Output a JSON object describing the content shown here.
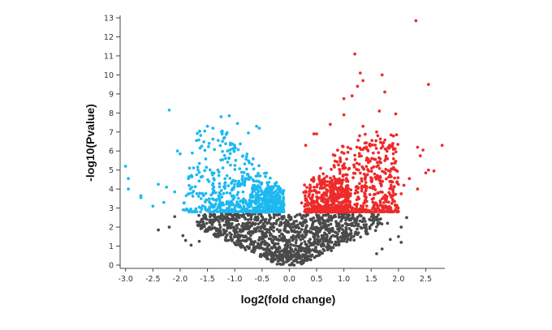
{
  "chart_data": {
    "type": "scatter",
    "title": "",
    "xlabel": "log2(fold change)",
    "ylabel": "-log10(Pvalue)",
    "xlim": [
      -3.1,
      2.85
    ],
    "ylim": [
      0,
      13.2
    ],
    "x_ticks": [
      -3.0,
      -2.5,
      -2.0,
      -1.5,
      -1.0,
      -0.5,
      0.0,
      0.5,
      1.0,
      1.5,
      2.0,
      2.5
    ],
    "x_tick_labels": [
      "-3.0",
      "-2.5",
      "-2.0",
      "-1.5",
      "-1.0",
      "-0.5",
      "0.0",
      "0.5",
      "1.0",
      "1.5",
      "2.0",
      "2.5"
    ],
    "y_ticks": [
      0,
      1,
      2,
      3,
      4,
      5,
      6,
      7,
      8,
      9,
      10,
      11,
      12,
      13
    ],
    "y_tick_labels": [
      "0",
      "1",
      "2",
      "3",
      "4",
      "5",
      "6",
      "7",
      "8",
      "9",
      "10",
      "11",
      "12",
      "13"
    ],
    "grid": false,
    "legend": "none",
    "significance_threshold_y": 2.75,
    "colors": {
      "down": "#1eb8f0",
      "up": "#ee2a2a",
      "not_significant": "#4a4a4a",
      "axis": "#444444"
    },
    "series": [
      {
        "color_key": "down",
        "points": [
          [
            -3.0,
            5.2
          ],
          [
            -2.95,
            4.55
          ],
          [
            -2.95,
            4.0
          ],
          [
            -2.72,
            3.65
          ],
          [
            -2.72,
            3.55
          ],
          [
            -2.4,
            4.25
          ],
          [
            -2.2,
            8.15
          ],
          [
            -2.05,
            6.0
          ],
          [
            -2.0,
            5.85
          ],
          [
            -1.7,
            6.55
          ],
          [
            -1.55,
            7.05
          ],
          [
            -1.5,
            7.3
          ],
          [
            -1.4,
            7.2
          ],
          [
            -1.25,
            7.8
          ],
          [
            -1.1,
            7.85
          ],
          [
            -0.95,
            7.45
          ],
          [
            -0.75,
            6.95
          ],
          [
            -0.6,
            7.3
          ],
          [
            -0.55,
            7.2
          ],
          [
            -2.25,
            4.1
          ],
          [
            -2.1,
            3.85
          ],
          [
            -1.85,
            4.55
          ],
          [
            -2.3,
            3.3
          ],
          [
            -2.5,
            3.1
          ]
        ],
        "clusters": [
          {
            "x_range": [
              -1.95,
              -0.1
            ],
            "y_range": [
              2.8,
              7.1
            ],
            "count": 520,
            "bias_x": 0.7,
            "bias_y": -1.2,
            "seed": 11
          },
          {
            "x_range": [
              -0.7,
              -0.1
            ],
            "y_range": [
              2.78,
              4.2
            ],
            "count": 220,
            "bias_x": 0.6,
            "bias_y": -0.5,
            "seed": 17
          }
        ]
      },
      {
        "color_key": "up",
        "points": [
          [
            2.32,
            12.85
          ],
          [
            1.2,
            11.1
          ],
          [
            1.3,
            10.1
          ],
          [
            1.35,
            9.7
          ],
          [
            1.25,
            9.4
          ],
          [
            1.7,
            10.0
          ],
          [
            2.55,
            9.5
          ],
          [
            1.75,
            9.1
          ],
          [
            1.15,
            8.9
          ],
          [
            1.0,
            8.75
          ],
          [
            1.65,
            8.1
          ],
          [
            1.95,
            7.95
          ],
          [
            2.8,
            6.3
          ],
          [
            2.35,
            6.2
          ],
          [
            2.45,
            6.05
          ],
          [
            2.4,
            5.75
          ],
          [
            2.55,
            5.0
          ],
          [
            2.5,
            4.85
          ],
          [
            2.65,
            4.95
          ],
          [
            2.35,
            4.0
          ],
          [
            2.1,
            4.2
          ],
          [
            0.45,
            6.9
          ],
          [
            0.5,
            6.9
          ],
          [
            0.75,
            7.4
          ],
          [
            1.0,
            7.9
          ],
          [
            1.35,
            7.3
          ],
          [
            0.3,
            6.3
          ],
          [
            1.6,
            7.0
          ],
          [
            2.05,
            3.75
          ],
          [
            2.2,
            4.55
          ]
        ],
        "clusters": [
          {
            "x_range": [
              0.15,
              2.0
            ],
            "y_range": [
              2.8,
              6.9
            ],
            "count": 560,
            "bias_x": 1.4,
            "bias_y": -1.3,
            "seed": 23
          },
          {
            "x_range": [
              0.25,
              1.1
            ],
            "y_range": [
              2.78,
              4.6
            ],
            "count": 380,
            "bias_x": 0.8,
            "bias_y": -0.6,
            "seed": 29
          }
        ]
      },
      {
        "color_key": "not_significant",
        "points": [
          [
            -2.4,
            1.85
          ],
          [
            -2.2,
            2.0
          ],
          [
            -2.1,
            2.55
          ],
          [
            -1.9,
            1.3
          ],
          [
            -1.8,
            1.05
          ],
          [
            -1.65,
            1.25
          ],
          [
            -1.95,
            1.55
          ],
          [
            2.15,
            2.5
          ],
          [
            2.05,
            1.2
          ],
          [
            2.05,
            2.0
          ],
          [
            2.0,
            1.5
          ],
          [
            1.85,
            1.35
          ],
          [
            1.8,
            2.2
          ],
          [
            1.7,
            0.85
          ],
          [
            1.6,
            0.6
          ]
        ],
        "clusters": [
          {
            "x_range": [
              -1.7,
              1.7
            ],
            "y_range": [
              0.2,
              2.72
            ],
            "count": 1100,
            "bias_x": 0.0,
            "bias_y": 0.0,
            "seed": 37,
            "v_shape": true
          },
          {
            "x_range": [
              -0.35,
              0.35
            ],
            "y_range": [
              0.0,
              0.9
            ],
            "count": 90,
            "bias_x": 0.0,
            "bias_y": -0.4,
            "seed": 41,
            "v_shape": true
          }
        ]
      }
    ]
  }
}
